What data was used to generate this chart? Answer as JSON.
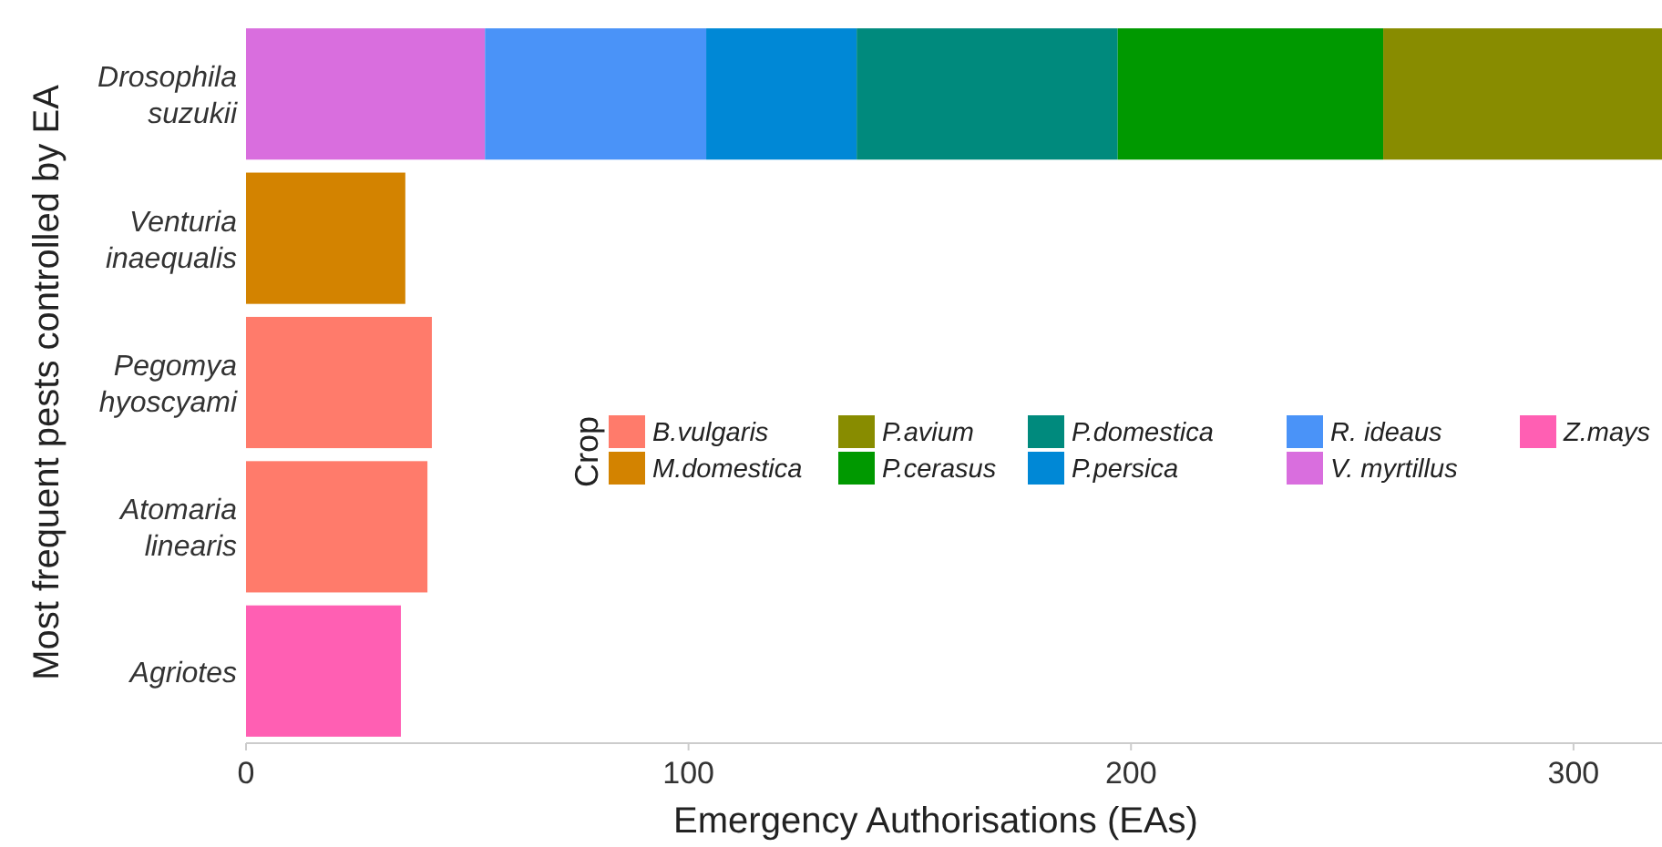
{
  "chart_data": {
    "type": "bar",
    "orientation": "horizontal",
    "stacked": true,
    "xlabel": "Emergency Authorisations (EAs)",
    "ylabel": "Most frequent pests controlled by EA",
    "legend_title": "Crop",
    "categories": [
      "Drosophila suzukii",
      "Venturia inaequalis",
      "Pegomya hyoscyami",
      "Atomaria linearis",
      "Agriotes"
    ],
    "series": [
      {
        "name": "Z.mays",
        "color": "#ff5fb3",
        "values": [
          null,
          null,
          null,
          null,
          35
        ]
      },
      {
        "name": "V. myrtillus",
        "color": "#d96ede",
        "values": [
          54,
          null,
          null,
          null,
          null
        ]
      },
      {
        "name": "R. ideaus",
        "color": "#4a93f8",
        "values": [
          50,
          null,
          null,
          null,
          null
        ]
      },
      {
        "name": "P.persica",
        "color": "#0088d6",
        "values": [
          34,
          null,
          null,
          null,
          null
        ]
      },
      {
        "name": "P.domestica",
        "color": "#008a7d",
        "values": [
          59,
          null,
          null,
          null,
          null
        ]
      },
      {
        "name": "P.cerasus",
        "color": "#009900",
        "values": [
          60,
          null,
          null,
          null,
          null
        ]
      },
      {
        "name": "P.avium",
        "color": "#888c00",
        "values": [
          63,
          null,
          null,
          null,
          null
        ]
      },
      {
        "name": "M.domestica",
        "color": "#d38300",
        "values": [
          null,
          36,
          null,
          null,
          null
        ]
      },
      {
        "name": "B.vulgaris",
        "color": "#ff7b6b",
        "values": [
          null,
          null,
          42,
          41,
          null
        ]
      }
    ],
    "xlim": [
      0,
      320
    ],
    "xticks": [
      0,
      100,
      200,
      300
    ],
    "grid": false,
    "legend": "right"
  }
}
